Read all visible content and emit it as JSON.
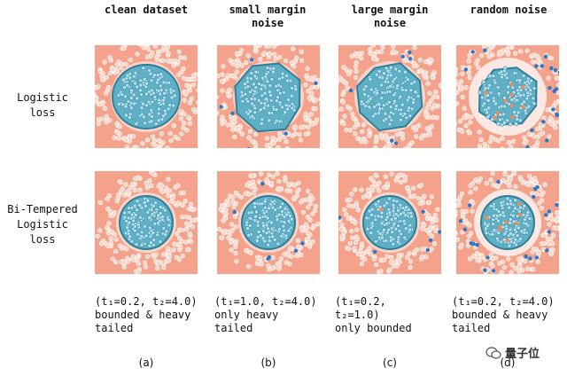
{
  "columns": [
    {
      "title": "clean dataset",
      "caption": "(t₁=0.2, t₂=4.0)\nbounded & heavy\ntailed",
      "letter": "(a)"
    },
    {
      "title": "small margin\nnoise",
      "caption": "(t₁=1.0, t₂=4.0)\nonly heavy\ntailed",
      "letter": "(b)"
    },
    {
      "title": "large margin\nnoise",
      "caption": "(t₁=0.2,\nt₂=1.0)\nonly bounded",
      "letter": "(c)"
    },
    {
      "title": "random noise",
      "caption": "(t₁=0.2, t₂=4.0)\nbounded & heavy\ntailed",
      "letter": "(d)"
    }
  ],
  "rows": [
    {
      "label": "Logistic\nloss"
    },
    {
      "label": "Bi-Tempered\nLogistic\nloss"
    }
  ],
  "watermark": {
    "text": "量子位"
  },
  "colors": {
    "background": "#f4a28b",
    "inner": "#5fb0c4",
    "inner_dark": "#2f7f99",
    "boundary": "#ffffff",
    "point_blue": "#2a78c8",
    "point_orange": "#f08a5d"
  }
}
